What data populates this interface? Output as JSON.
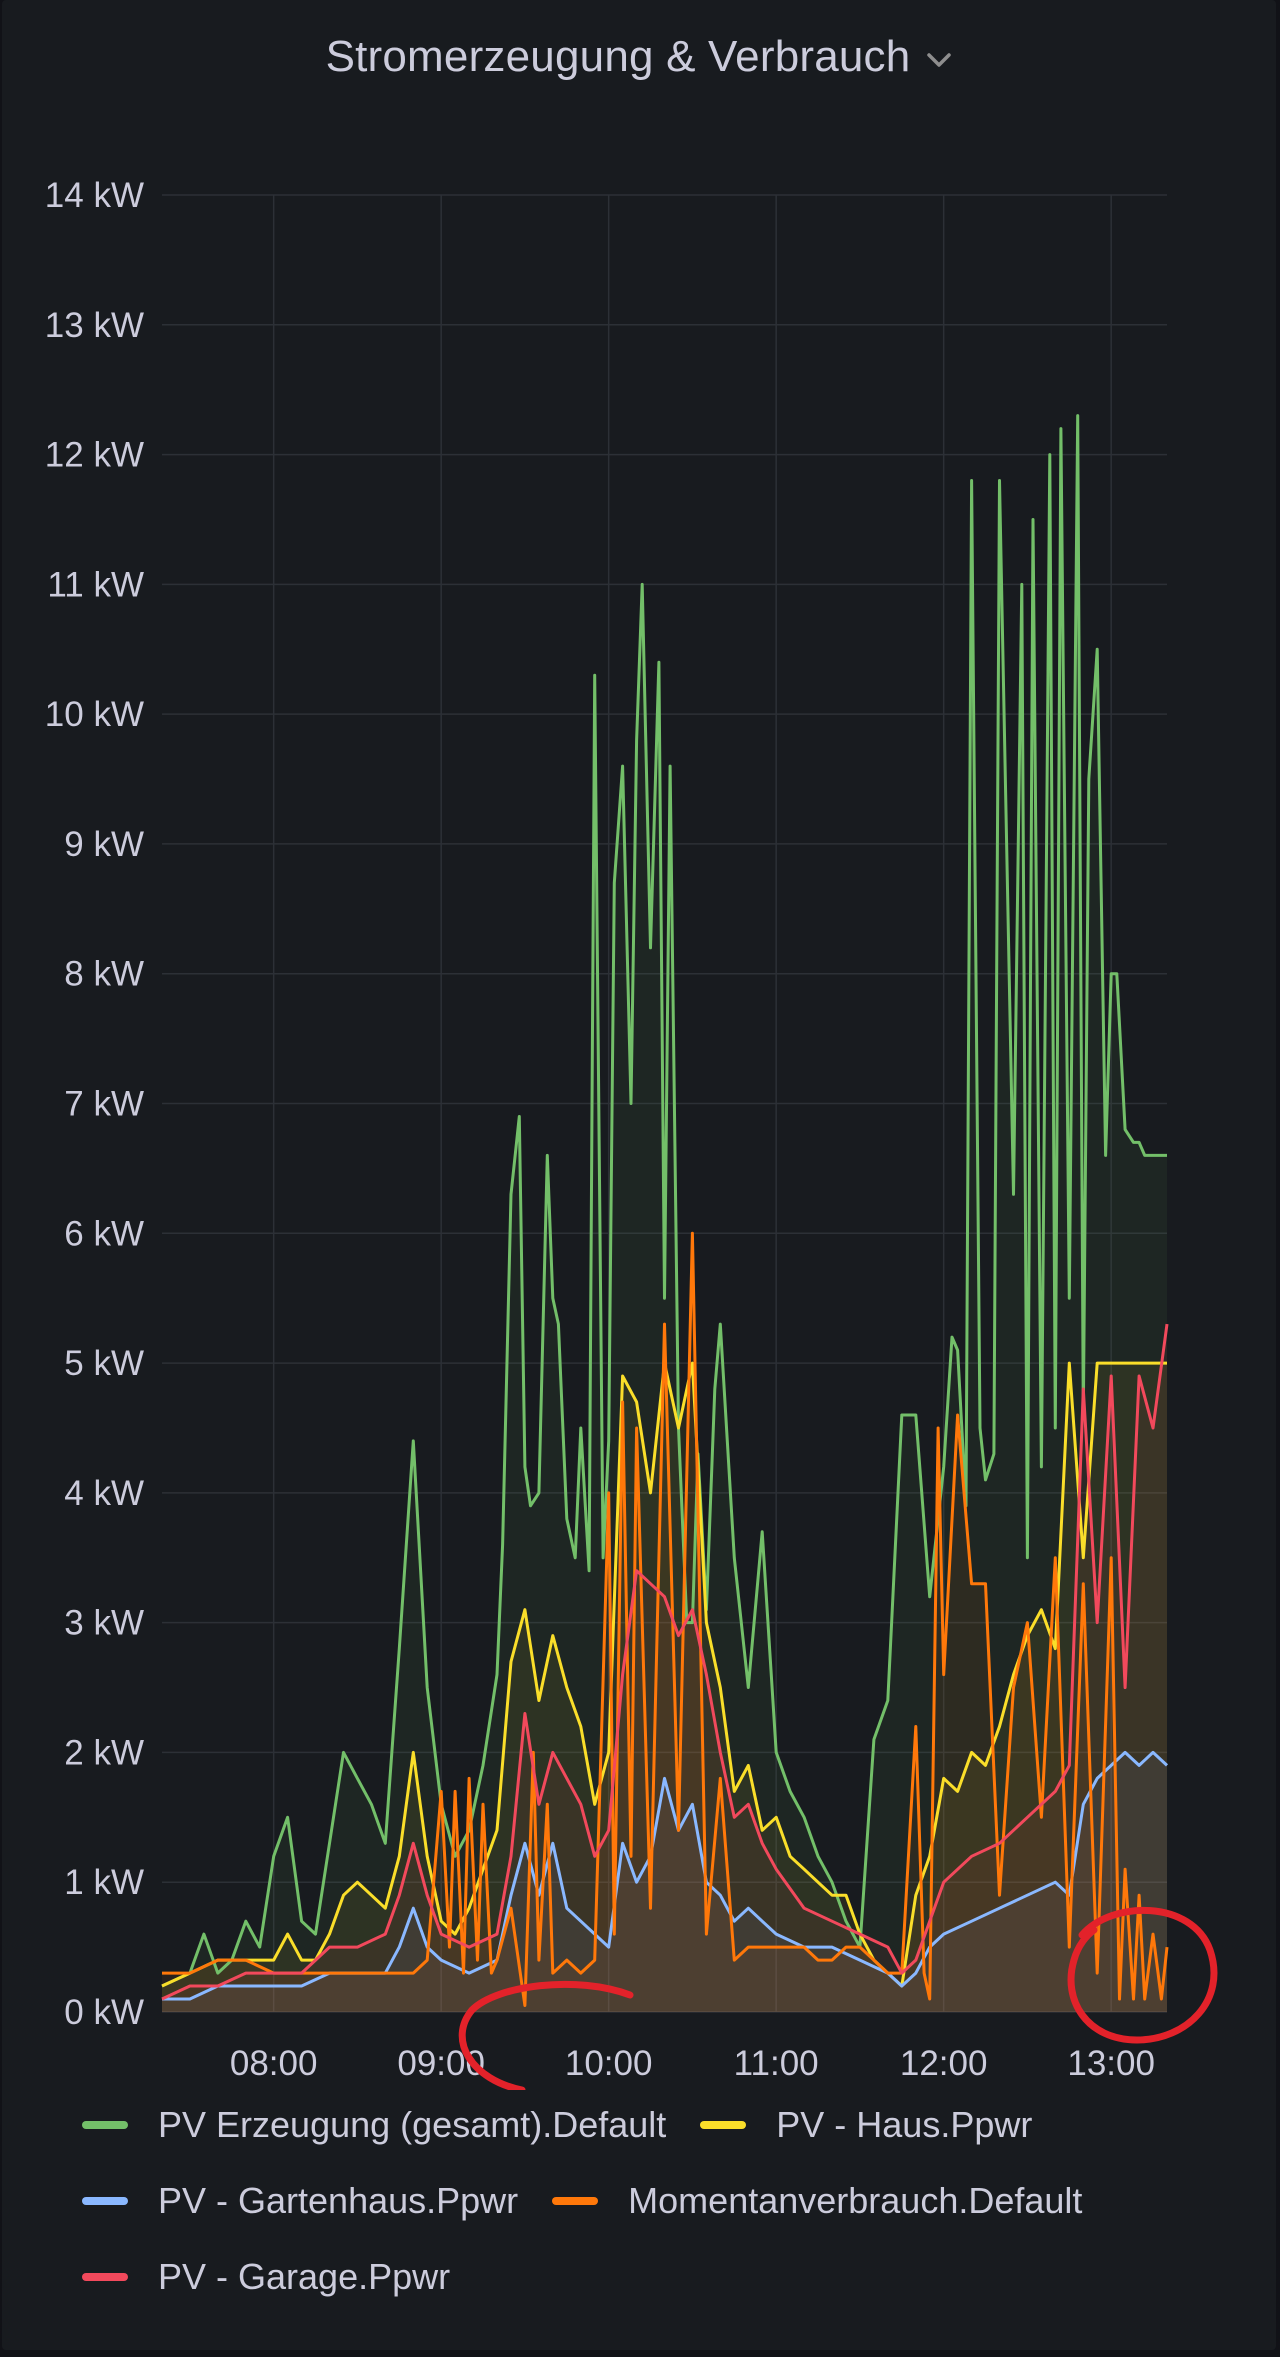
{
  "panel": {
    "title": "Stromerzeugung & Verbrauch",
    "menu_icon": "chevron-down-icon"
  },
  "colors": {
    "background": "#181b1f",
    "grid": "#2c3036",
    "text": "#ccccdc",
    "annotation": "#e3222a"
  },
  "legend": [
    {
      "label": "PV Erzeugung (gesamt).Default",
      "color": "#73bf69"
    },
    {
      "label": "PV - Haus.Ppwr",
      "color": "#fade2a"
    },
    {
      "label": "PV - Gartenhaus.Ppwr",
      "color": "#8ab8ff"
    },
    {
      "label": "Momentanverbrauch.Default",
      "color": "#ff780a"
    },
    {
      "label": "PV - Garage.Ppwr",
      "color": "#f2495c"
    }
  ],
  "chart_data": {
    "type": "line",
    "title": "Stromerzeugung & Verbrauch",
    "xlabel": "",
    "ylabel": "",
    "y_unit": "kW",
    "y_ticks": [
      "0 kW",
      "1 kW",
      "2 kW",
      "3 kW",
      "4 kW",
      "5 kW",
      "6 kW",
      "7 kW",
      "8 kW",
      "9 kW",
      "10 kW",
      "11 kW",
      "12 kW",
      "13 kW",
      "14 kW"
    ],
    "x_ticks": [
      "08:00",
      "09:00",
      "10:00",
      "11:00",
      "12:00",
      "13:00"
    ],
    "ylim": [
      0,
      14
    ],
    "xlim": [
      "07:20",
      "13:20"
    ],
    "grid": true,
    "legend_position": "bottom",
    "fill_under": true,
    "series": [
      {
        "name": "PV Erzeugung (gesamt).Default",
        "color": "#73bf69",
        "x": [
          "07:20",
          "07:30",
          "07:35",
          "07:40",
          "07:45",
          "07:50",
          "07:55",
          "08:00",
          "08:05",
          "08:10",
          "08:15",
          "08:20",
          "08:25",
          "08:30",
          "08:35",
          "08:40",
          "08:45",
          "08:50",
          "08:55",
          "09:00",
          "09:05",
          "09:10",
          "09:15",
          "09:20",
          "09:22",
          "09:25",
          "09:28",
          "09:30",
          "09:32",
          "09:35",
          "09:38",
          "09:40",
          "09:42",
          "09:45",
          "09:48",
          "09:50",
          "09:53",
          "09:55",
          "09:58",
          "10:00",
          "10:02",
          "10:05",
          "10:08",
          "10:10",
          "10:12",
          "10:15",
          "10:18",
          "10:20",
          "10:22",
          "10:25",
          "10:28",
          "10:30",
          "10:32",
          "10:35",
          "10:38",
          "10:40",
          "10:45",
          "10:50",
          "10:55",
          "11:00",
          "11:05",
          "11:10",
          "11:15",
          "11:20",
          "11:25",
          "11:30",
          "11:35",
          "11:40",
          "11:45",
          "11:50",
          "11:55",
          "12:00",
          "12:03",
          "12:05",
          "12:08",
          "12:10",
          "12:13",
          "12:15",
          "12:18",
          "12:20",
          "12:25",
          "12:28",
          "12:30",
          "12:32",
          "12:35",
          "12:38",
          "12:40",
          "12:42",
          "12:45",
          "12:48",
          "12:50",
          "12:52",
          "12:55",
          "12:58",
          "13:00",
          "13:02",
          "13:05",
          "13:08",
          "13:10",
          "13:12",
          "13:15",
          "13:18",
          "13:20"
        ],
        "values": [
          0.2,
          0.3,
          0.6,
          0.3,
          0.4,
          0.7,
          0.5,
          1.2,
          1.5,
          0.7,
          0.6,
          1.3,
          2.0,
          1.8,
          1.6,
          1.3,
          2.8,
          4.4,
          2.5,
          1.6,
          1.2,
          1.4,
          1.9,
          2.6,
          3.6,
          6.3,
          6.9,
          4.2,
          3.9,
          4.0,
          6.6,
          5.5,
          5.3,
          3.8,
          3.5,
          4.5,
          3.4,
          10.3,
          3.5,
          4.4,
          8.7,
          9.6,
          7.0,
          9.8,
          11.0,
          8.2,
          10.4,
          5.5,
          9.6,
          4.5,
          3.0,
          3.0,
          4.3,
          3.1,
          4.8,
          5.3,
          3.5,
          2.5,
          3.7,
          2.0,
          1.7,
          1.5,
          1.2,
          1.0,
          0.7,
          0.5,
          2.1,
          2.4,
          4.6,
          4.6,
          3.2,
          4.2,
          5.2,
          5.1,
          3.9,
          11.8,
          4.5,
          4.1,
          4.3,
          11.8,
          6.3,
          11.0,
          3.5,
          11.5,
          4.2,
          12.0,
          4.5,
          12.2,
          5.5,
          12.3,
          4.6,
          9.5,
          10.5,
          6.6,
          8.0,
          8.0,
          6.8,
          6.7,
          6.7,
          6.6,
          6.6,
          6.6,
          6.6
        ]
      },
      {
        "name": "PV - Haus.Ppwr",
        "color": "#fade2a",
        "x": [
          "07:20",
          "07:30",
          "07:40",
          "07:50",
          "08:00",
          "08:05",
          "08:10",
          "08:15",
          "08:20",
          "08:25",
          "08:30",
          "08:35",
          "08:40",
          "08:45",
          "08:50",
          "08:55",
          "09:00",
          "09:05",
          "09:10",
          "09:15",
          "09:20",
          "09:25",
          "09:30",
          "09:35",
          "09:40",
          "09:45",
          "09:50",
          "09:55",
          "10:00",
          "10:05",
          "10:10",
          "10:15",
          "10:20",
          "10:25",
          "10:30",
          "10:35",
          "10:40",
          "10:45",
          "10:50",
          "10:55",
          "11:00",
          "11:05",
          "11:10",
          "11:15",
          "11:20",
          "11:25",
          "11:30",
          "11:35",
          "11:40",
          "11:45",
          "11:50",
          "11:55",
          "12:00",
          "12:05",
          "12:10",
          "12:15",
          "12:20",
          "12:25",
          "12:30",
          "12:35",
          "12:40",
          "12:45",
          "12:50",
          "12:55",
          "13:00",
          "13:05",
          "13:10",
          "13:15",
          "13:20"
        ],
        "values": [
          0.2,
          0.3,
          0.4,
          0.4,
          0.4,
          0.6,
          0.4,
          0.4,
          0.6,
          0.9,
          1.0,
          0.9,
          0.8,
          1.2,
          2.0,
          1.2,
          0.7,
          0.6,
          0.8,
          1.1,
          1.4,
          2.7,
          3.1,
          2.4,
          2.9,
          2.5,
          2.2,
          1.6,
          2.0,
          4.9,
          4.7,
          4.0,
          5.0,
          4.5,
          5.0,
          3.0,
          2.5,
          1.7,
          1.9,
          1.4,
          1.5,
          1.2,
          1.1,
          1.0,
          0.9,
          0.9,
          0.6,
          0.4,
          0.3,
          0.2,
          0.9,
          1.2,
          1.8,
          1.7,
          2.0,
          1.9,
          2.2,
          2.6,
          2.9,
          3.1,
          2.8,
          5.0,
          3.5,
          5.0,
          5.0,
          5.0,
          5.0,
          5.0,
          5.0
        ]
      },
      {
        "name": "PV - Gartenhaus.Ppwr",
        "color": "#8ab8ff",
        "x": [
          "07:20",
          "07:30",
          "07:40",
          "07:50",
          "08:00",
          "08:10",
          "08:20",
          "08:30",
          "08:40",
          "08:45",
          "08:50",
          "08:55",
          "09:00",
          "09:10",
          "09:20",
          "09:25",
          "09:30",
          "09:35",
          "09:40",
          "09:45",
          "09:50",
          "09:55",
          "10:00",
          "10:05",
          "10:10",
          "10:15",
          "10:20",
          "10:25",
          "10:30",
          "10:35",
          "10:40",
          "10:45",
          "10:50",
          "10:55",
          "11:00",
          "11:10",
          "11:20",
          "11:30",
          "11:40",
          "11:45",
          "11:50",
          "11:55",
          "12:00",
          "12:10",
          "12:20",
          "12:30",
          "12:40",
          "12:45",
          "12:50",
          "12:55",
          "13:00",
          "13:05",
          "13:10",
          "13:15",
          "13:20"
        ],
        "values": [
          0.1,
          0.1,
          0.2,
          0.2,
          0.2,
          0.2,
          0.3,
          0.3,
          0.3,
          0.5,
          0.8,
          0.5,
          0.4,
          0.3,
          0.4,
          0.9,
          1.3,
          0.9,
          1.3,
          0.8,
          0.7,
          0.6,
          0.5,
          1.3,
          1.0,
          1.2,
          1.8,
          1.4,
          1.6,
          1.0,
          0.9,
          0.7,
          0.8,
          0.7,
          0.6,
          0.5,
          0.5,
          0.4,
          0.3,
          0.2,
          0.3,
          0.5,
          0.6,
          0.7,
          0.8,
          0.9,
          1.0,
          0.9,
          1.6,
          1.8,
          1.9,
          2.0,
          1.9,
          2.0,
          1.9
        ]
      },
      {
        "name": "Momentanverbrauch.Default",
        "color": "#ff780a",
        "x": [
          "07:20",
          "07:30",
          "07:40",
          "07:50",
          "08:00",
          "08:10",
          "08:20",
          "08:30",
          "08:40",
          "08:50",
          "08:55",
          "09:00",
          "09:03",
          "09:05",
          "09:08",
          "09:10",
          "09:13",
          "09:15",
          "09:18",
          "09:20",
          "09:25",
          "09:30",
          "09:33",
          "09:35",
          "09:38",
          "09:40",
          "09:45",
          "09:50",
          "09:55",
          "10:00",
          "10:02",
          "10:05",
          "10:08",
          "10:10",
          "10:15",
          "10:18",
          "10:20",
          "10:25",
          "10:30",
          "10:35",
          "10:40",
          "10:45",
          "10:50",
          "10:55",
          "11:00",
          "11:05",
          "11:10",
          "11:15",
          "11:20",
          "11:25",
          "11:30",
          "11:35",
          "11:40",
          "11:45",
          "11:50",
          "11:53",
          "11:55",
          "11:58",
          "12:00",
          "12:05",
          "12:10",
          "12:15",
          "12:20",
          "12:25",
          "12:30",
          "12:35",
          "12:40",
          "12:45",
          "12:50",
          "12:55",
          "13:00",
          "13:03",
          "13:05",
          "13:08",
          "13:10",
          "13:12",
          "13:15",
          "13:18",
          "13:20"
        ],
        "values": [
          0.3,
          0.3,
          0.4,
          0.4,
          0.3,
          0.3,
          0.3,
          0.3,
          0.3,
          0.3,
          0.4,
          1.7,
          0.5,
          1.7,
          0.3,
          1.8,
          0.4,
          1.6,
          0.3,
          0.4,
          0.8,
          0.05,
          2.0,
          0.4,
          1.6,
          0.3,
          0.4,
          0.3,
          0.4,
          4.0,
          0.6,
          4.7,
          1.2,
          4.5,
          0.8,
          3.5,
          5.3,
          1.4,
          6.0,
          0.6,
          1.8,
          0.4,
          0.5,
          0.5,
          0.5,
          0.5,
          0.5,
          0.4,
          0.4,
          0.5,
          0.5,
          0.4,
          0.3,
          0.3,
          2.2,
          0.3,
          0.1,
          4.5,
          2.6,
          4.6,
          3.3,
          3.3,
          0.9,
          2.5,
          3.0,
          1.5,
          3.5,
          0.5,
          3.3,
          0.3,
          3.5,
          0.1,
          1.1,
          0.1,
          0.9,
          0.1,
          0.6,
          0.1,
          0.5
        ]
      },
      {
        "name": "PV - Garage.Ppwr",
        "color": "#f2495c",
        "x": [
          "07:20",
          "07:30",
          "07:40",
          "07:50",
          "08:00",
          "08:10",
          "08:20",
          "08:30",
          "08:40",
          "08:45",
          "08:50",
          "08:55",
          "09:00",
          "09:10",
          "09:20",
          "09:25",
          "09:30",
          "09:35",
          "09:40",
          "09:45",
          "09:50",
          "09:55",
          "10:00",
          "10:05",
          "10:10",
          "10:15",
          "10:20",
          "10:25",
          "10:30",
          "10:35",
          "10:40",
          "10:45",
          "10:50",
          "10:55",
          "11:00",
          "11:10",
          "11:20",
          "11:30",
          "11:40",
          "11:45",
          "11:50",
          "11:55",
          "12:00",
          "12:10",
          "12:20",
          "12:30",
          "12:40",
          "12:45",
          "12:50",
          "12:55",
          "13:00",
          "13:05",
          "13:10",
          "13:15",
          "13:20"
        ],
        "values": [
          0.1,
          0.2,
          0.2,
          0.3,
          0.3,
          0.3,
          0.5,
          0.5,
          0.6,
          0.9,
          1.3,
          0.9,
          0.6,
          0.5,
          0.6,
          1.2,
          2.3,
          1.6,
          2.0,
          1.8,
          1.6,
          1.2,
          1.4,
          2.6,
          3.4,
          3.3,
          3.2,
          2.9,
          3.1,
          2.6,
          2.0,
          1.5,
          1.6,
          1.3,
          1.1,
          0.8,
          0.7,
          0.6,
          0.5,
          0.3,
          0.4,
          0.7,
          1.0,
          1.2,
          1.3,
          1.5,
          1.7,
          1.9,
          4.8,
          3.0,
          4.9,
          2.5,
          4.9,
          4.5,
          5.3
        ]
      }
    ]
  }
}
